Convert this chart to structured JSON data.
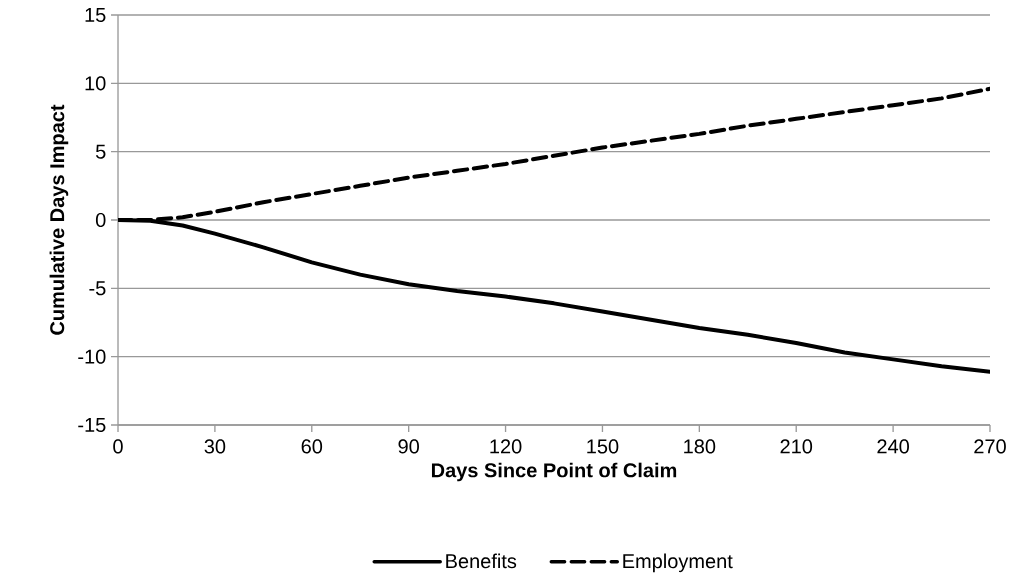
{
  "chart_data": {
    "type": "line",
    "xlabel": "Days Since Point of Claim",
    "ylabel": "Cumulative Days Impact",
    "x": [
      0,
      10,
      20,
      30,
      45,
      60,
      75,
      90,
      105,
      120,
      135,
      150,
      165,
      180,
      195,
      210,
      225,
      240,
      255,
      270
    ],
    "series": [
      {
        "name": "Benefits",
        "color": "#000000",
        "line_style": "solid",
        "values": [
          0,
          -0.05,
          -0.4,
          -1.0,
          -2.0,
          -3.1,
          -4.0,
          -4.7,
          -5.2,
          -5.6,
          -6.1,
          -6.7,
          -7.3,
          -7.9,
          -8.4,
          -9.0,
          -9.7,
          -10.2,
          -10.7,
          -11.1
        ]
      },
      {
        "name": "Employment",
        "color": "#000000",
        "line_style": "dashed",
        "values": [
          0,
          0,
          0.2,
          0.6,
          1.3,
          1.9,
          2.5,
          3.1,
          3.6,
          4.1,
          4.7,
          5.3,
          5.8,
          6.3,
          6.9,
          7.4,
          7.9,
          8.4,
          8.9,
          9.6
        ]
      }
    ],
    "xlim": [
      0,
      270
    ],
    "xticks": [
      0,
      30,
      60,
      90,
      120,
      150,
      180,
      210,
      240,
      270
    ],
    "ylim": [
      -15,
      15
    ],
    "yticks": [
      -15,
      -10,
      -5,
      0,
      5,
      10,
      15
    ],
    "grid": "y",
    "legend": "bottom",
    "marker": "none"
  }
}
